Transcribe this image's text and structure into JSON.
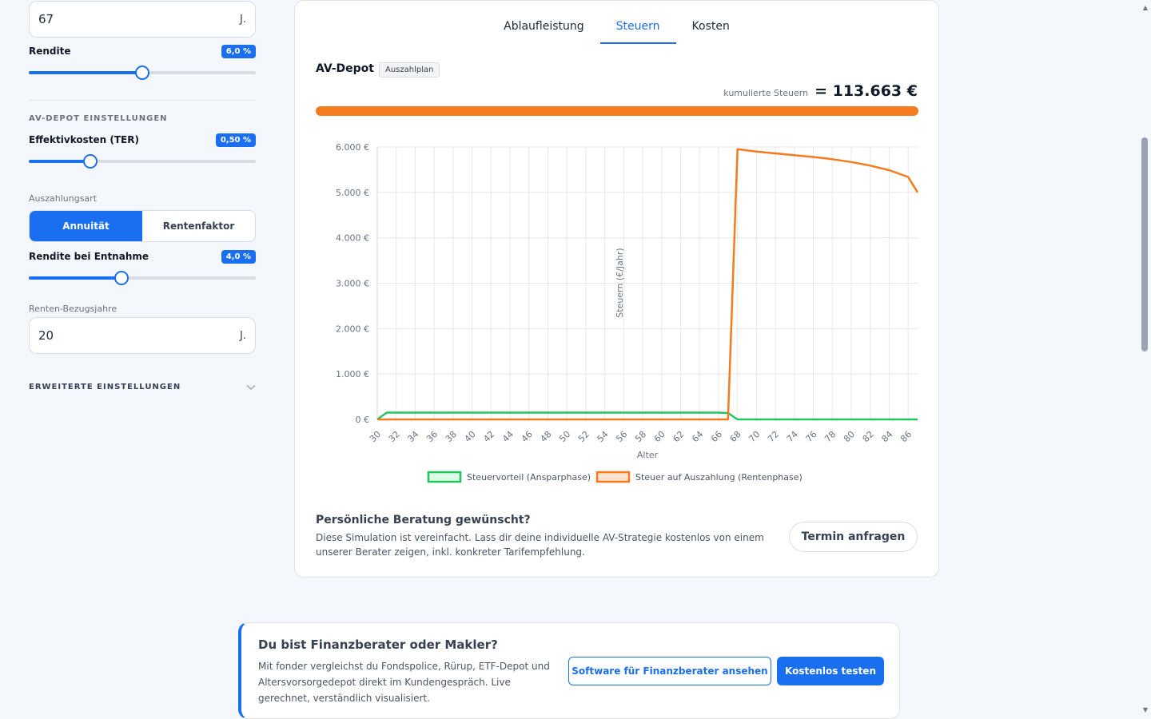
{
  "left_panel": {
    "age_input": {
      "value": "67",
      "unit": "J."
    },
    "rendite": {
      "label": "Rendite",
      "badge": "6,0 %",
      "level": 0.5
    },
    "av_section_title": "AV-DEPOT EINSTELLUNGEN",
    "ter": {
      "label": "Effektivkosten (TER)",
      "badge": "0,50 %",
      "level": 0.27
    },
    "payout_type": {
      "label": "Auszahlungsart",
      "options": [
        "Annuität",
        "Rentenfaktor"
      ],
      "selected": "Annuität"
    },
    "rendite_entnahme": {
      "label": "Rendite bei Entnahme",
      "badge": "4,0 %",
      "level": 0.41
    },
    "bezugsjahre": {
      "label": "Renten-Bezugsjahre",
      "value": "20",
      "unit": "J."
    },
    "advanced": {
      "label": "ERWEITERTE EINSTELLUNGEN"
    }
  },
  "card": {
    "tabs": [
      "Ablaufleistung",
      "Steuern",
      "Kosten"
    ],
    "active_tab": "Steuern",
    "depot_title": "AV-Depot",
    "depot_tag": "Auszahlplan",
    "cumulative_label": "kumulierte Steuern",
    "cumulative_value": "= 113.663 €",
    "advice_title": "Persönliche Beratung gewünscht?",
    "advice_text": "Diese Simulation ist vereinfacht. Lass dir deine individuelle AV-Strategie kostenlos von einem unserer Berater zeigen, inkl. konkreter Tarifempfehlung.",
    "advice_button": "Termin anfragen"
  },
  "chart_data": {
    "type": "line",
    "xlabel": "Alter",
    "ylabel": "Steuern (€/Jahr)",
    "ylim": [
      0,
      6000
    ],
    "yticks": [
      0,
      1000,
      2000,
      3000,
      4000,
      5000,
      6000
    ],
    "ytick_labels": [
      "0 €",
      "1.000 €",
      "2.000 €",
      "3.000 €",
      "4.000 €",
      "5.000 €",
      "6.000 €"
    ],
    "xticks": [
      30,
      32,
      34,
      36,
      38,
      40,
      42,
      44,
      46,
      48,
      50,
      52,
      54,
      56,
      58,
      60,
      62,
      64,
      66,
      68,
      70,
      72,
      74,
      76,
      78,
      80,
      82,
      84,
      86
    ],
    "x_range": [
      30,
      87
    ],
    "grid": true,
    "legend_position": "bottom",
    "series": [
      {
        "name": "Steuervorteil (Ansparphase)",
        "color": "#22c55e",
        "points": [
          [
            30,
            0
          ],
          [
            31,
            150
          ],
          [
            66,
            150
          ],
          [
            67,
            140
          ],
          [
            68,
            0
          ],
          [
            87,
            0
          ]
        ]
      },
      {
        "name": "Steuer auf Auszahlung (Rentenphase)",
        "color": "#f47b1e",
        "points": [
          [
            30,
            0
          ],
          [
            67,
            0
          ],
          [
            68,
            5950
          ],
          [
            70,
            5900
          ],
          [
            72,
            5860
          ],
          [
            74,
            5820
          ],
          [
            76,
            5780
          ],
          [
            78,
            5730
          ],
          [
            80,
            5670
          ],
          [
            82,
            5590
          ],
          [
            84,
            5490
          ],
          [
            86,
            5340
          ],
          [
            87,
            5000
          ]
        ]
      }
    ]
  },
  "bottom": {
    "title": "Du bist Finanzberater oder Makler?",
    "text": "Mit fonder vergleichst du Fondspolice, Rürup, ETF-Depot und Altersvorsorgedepot direkt im Kundengespräch. Live gerechnet, verständlich visualisiert.",
    "button_outline": "Software für Finanzberater ansehen",
    "button_solid": "Kostenlos testen"
  }
}
